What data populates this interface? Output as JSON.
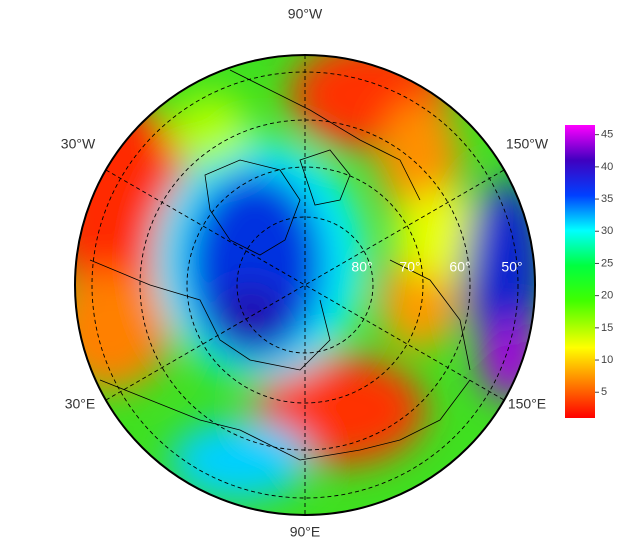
{
  "map": {
    "longitude_labels": [
      "90°W",
      "30°W",
      "150°W",
      "30°E",
      "150°E",
      "90°E"
    ],
    "latitude_labels": [
      "80°",
      "70°",
      "60°",
      "50°"
    ]
  },
  "colorbar": {
    "lim": [
      1,
      46.5
    ],
    "ticks": [
      5,
      10,
      15,
      20,
      25,
      30,
      35,
      40,
      45
    ]
  }
}
